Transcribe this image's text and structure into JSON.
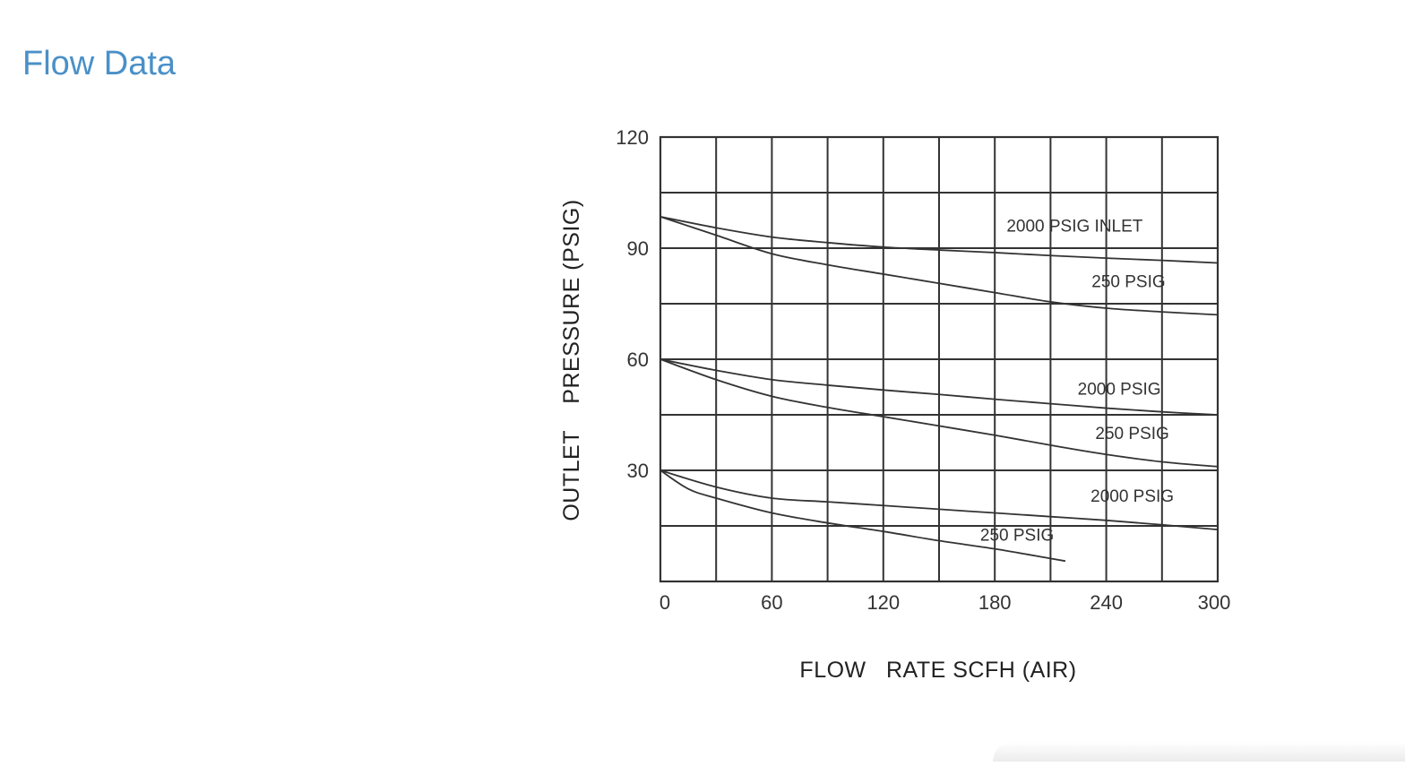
{
  "page": {
    "title": "Flow Data",
    "title_color": "#4a90c8"
  },
  "chart_data": {
    "type": "line",
    "title": "",
    "xlabel": "FLOW   RATE SCFH (AIR)",
    "ylabel": "OUTLET    PRESSURE (PSIG)",
    "xlim": [
      0,
      300
    ],
    "ylim": [
      0,
      120
    ],
    "x_ticks": [
      0,
      60,
      120,
      180,
      240,
      300
    ],
    "y_ticks": [
      30,
      60,
      90,
      120
    ],
    "x_grid_step": 30,
    "y_grid_step": 15,
    "grid": true,
    "line_color": "#333333",
    "series": [
      {
        "name": "2000 PSIG INLET",
        "x": [
          0,
          30,
          60,
          90,
          120,
          150,
          180,
          210,
          240,
          270,
          300
        ],
        "y": [
          98.5,
          95.5,
          93,
          91.5,
          90.3,
          89.5,
          88.8,
          88,
          87.3,
          86.7,
          86
        ]
      },
      {
        "name": "250 PSIG",
        "x": [
          0,
          30,
          60,
          90,
          120,
          150,
          180,
          210,
          240,
          270,
          300
        ],
        "y": [
          98.5,
          93.5,
          88.5,
          85.5,
          83,
          80.5,
          78,
          75.5,
          73.8,
          72.8,
          72
        ]
      },
      {
        "name": "2000 PSIG",
        "x": [
          0,
          30,
          60,
          90,
          120,
          150,
          180,
          210,
          240,
          270,
          300
        ],
        "y": [
          60,
          57,
          54.5,
          53,
          51.7,
          50.5,
          49.2,
          48,
          46.8,
          45.8,
          45
        ]
      },
      {
        "name": "250 PSIG",
        "x": [
          0,
          30,
          60,
          90,
          120,
          150,
          180,
          210,
          240,
          270,
          300
        ],
        "y": [
          60,
          54.5,
          50,
          47,
          44.5,
          42,
          39.5,
          36.8,
          34.3,
          32.3,
          31
        ]
      },
      {
        "name": "2000 PSIG",
        "x": [
          0,
          30,
          60,
          90,
          120,
          150,
          180,
          210,
          240,
          270,
          300
        ],
        "y": [
          30,
          25.5,
          22.5,
          21.5,
          20.5,
          19.5,
          18.5,
          17.5,
          16.5,
          15.3,
          14
        ]
      },
      {
        "name": "250 PSIG",
        "x": [
          0,
          15,
          30,
          60,
          90,
          120,
          150,
          180,
          210,
          218
        ],
        "y": [
          30,
          25,
          22.5,
          18.5,
          15.8,
          13.5,
          11,
          8.8,
          6.2,
          5.5
        ]
      }
    ],
    "curve_labels": [
      {
        "text": "2000 PSIG INLET",
        "x": 223,
        "y": 94.5
      },
      {
        "text": "250 PSIG",
        "x": 252,
        "y": 79.5
      },
      {
        "text": "2000 PSIG",
        "x": 247,
        "y": 50.5
      },
      {
        "text": "250 PSIG",
        "x": 254,
        "y": 38.5
      },
      {
        "text": "2000 PSIG",
        "x": 254,
        "y": 21.5
      },
      {
        "text": "250 PSIG",
        "x": 192,
        "y": 11
      }
    ]
  }
}
